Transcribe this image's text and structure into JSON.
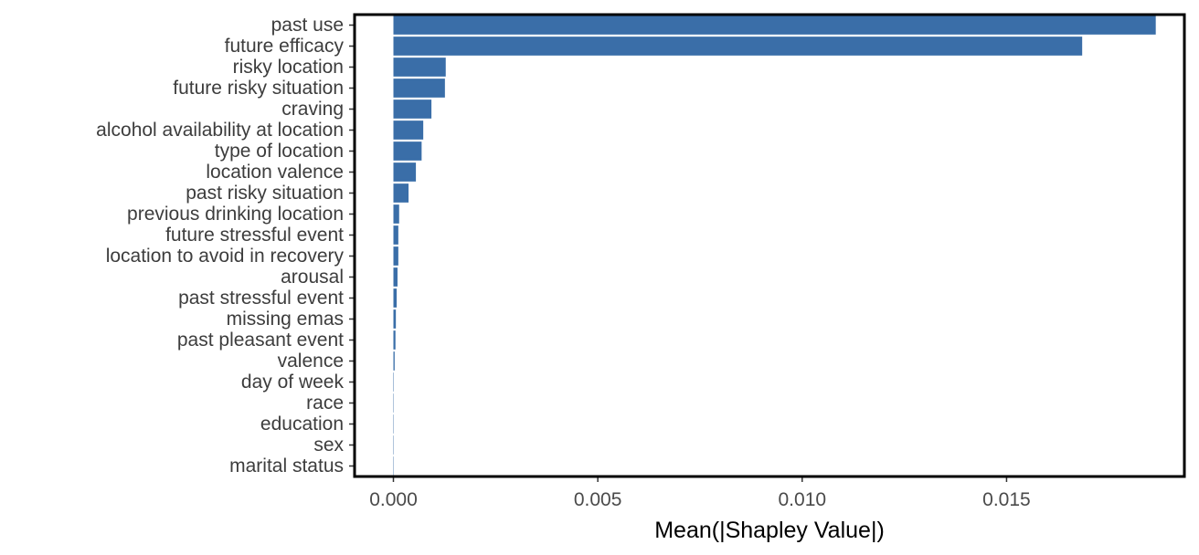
{
  "chart_data": {
    "type": "bar",
    "orientation": "horizontal",
    "title": "",
    "xlabel": "Mean(|Shapley Value|)",
    "ylabel": "",
    "xlim": [
      -0.00095,
      0.01935
    ],
    "xticks": [
      0.0,
      0.005,
      0.01,
      0.015
    ],
    "xtick_labels": [
      "0.000",
      "0.005",
      "0.010",
      "0.015"
    ],
    "grid": false,
    "legend": "none",
    "bar_color": "#3a6ea8",
    "categories": [
      "past use",
      "future efficacy",
      "risky location",
      "future risky situation",
      "craving",
      "alcohol availability at location",
      "type of location",
      "location valence",
      "past risky situation",
      "previous drinking location",
      "future stressful event",
      "location to avoid in recovery",
      "arousal",
      "past stressful event",
      "missing emas",
      "past pleasant event",
      "valence",
      "day of week",
      "race",
      "education",
      "sex",
      "marital status"
    ],
    "values": [
      0.01865,
      0.01685,
      0.00128,
      0.00126,
      0.00093,
      0.00073,
      0.00069,
      0.00055,
      0.00037,
      0.00014,
      0.00012,
      0.00012,
      0.0001,
      8e-05,
      6e-05,
      5e-05,
      3e-05,
      1e-05,
      5e-06,
      3e-06,
      2e-06,
      2e-06
    ]
  }
}
